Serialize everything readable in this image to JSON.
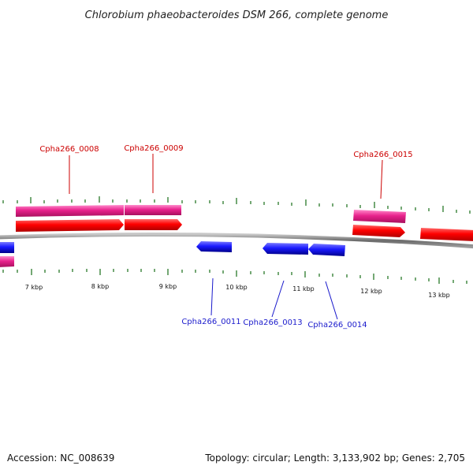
{
  "title": "Chlorobium phaeobacteroides DSM 266, complete genome",
  "footer": {
    "accession": "Accession: NC_008639",
    "topology": "Topology: circular; Length: 3,133,902 bp; Genes: 2,705"
  },
  "colors": {
    "forward_cds": "#ff0000",
    "forward_gene": "#e8228c",
    "reverse_cds": "#1a1aff",
    "reverse_gene": "#e8228c",
    "backbone": "#888888",
    "ticks": "#2a7a2a",
    "label_forward": "#cc0000",
    "label_reverse": "#1a1acc"
  },
  "kbp_labels": [
    "7 kbp",
    "8 kbp",
    "9 kbp",
    "10 kbp",
    "11 kbp",
    "12 kbp",
    "13 kbp"
  ],
  "gene_labels": {
    "g0008": "Cpha266_0008",
    "g0009": "Cpha266_0009",
    "g0015": "Cpha266_0015",
    "g0011": "Cpha266_0011",
    "g0013": "Cpha266_0013",
    "g0014": "Cpha266_0014"
  }
}
